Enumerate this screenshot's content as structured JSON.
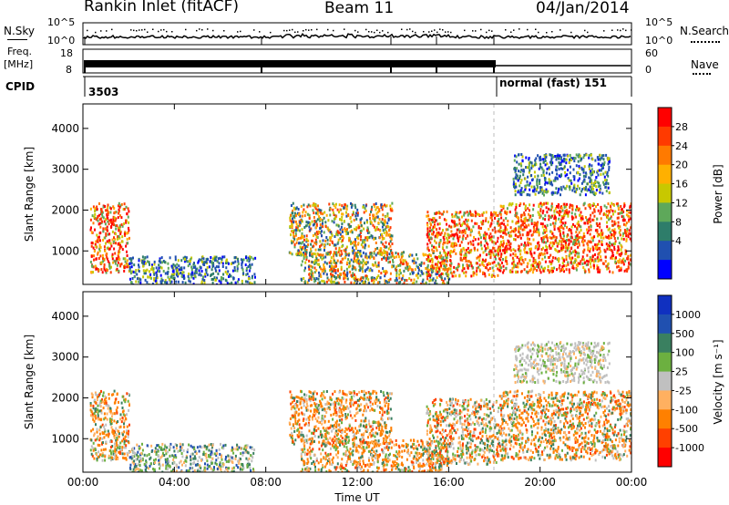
{
  "header": {
    "station": "Rankin Inlet (fitACF)",
    "beam": "Beam 11",
    "date": "04/Jan/2014"
  },
  "aux": {
    "nsky_label": "N.Sky",
    "nsky_ticks": [
      "10^5",
      "10^0"
    ],
    "nsearch_label": "N.Search",
    "freq_label_top": "Freq.",
    "freq_label_bottom": "[MHz]",
    "freq_ticks": [
      "18",
      "8"
    ],
    "nave_label": "Nave",
    "nave_ticks": [
      "60",
      "0"
    ],
    "cpid_label": "CPID",
    "cpid_left": "3503",
    "cpid_right": "normal (fast) 151"
  },
  "chart_data": [
    {
      "type": "heatmap",
      "name": "power-panel",
      "ylabel": "Slant Range [km]",
      "xlabel": "",
      "x_ticks": [
        "00:00",
        "04:00",
        "08:00",
        "12:00",
        "16:00",
        "20:00",
        "00:00"
      ],
      "x_range_hours": [
        0,
        24
      ],
      "y_ticks": [
        1000,
        2000,
        3000,
        4000
      ],
      "y_range_km": [
        180,
        4600
      ],
      "colorbar": {
        "label": "Power [dB]",
        "ticks": [
          "28",
          "24",
          "20",
          "16",
          "12",
          "8",
          "4"
        ],
        "colors": [
          "#ff0000",
          "#ff3a00",
          "#ff7a00",
          "#ffb000",
          "#c8c800",
          "#5ea85a",
          "#2e7d6a",
          "#2050b0",
          "#0000ff"
        ]
      },
      "echo_regions": [
        {
          "t_start": 0.3,
          "t_end": 2.0,
          "r_min": 500,
          "r_max": 2200,
          "level": "high"
        },
        {
          "t_start": 2.0,
          "t_end": 7.5,
          "r_min": 200,
          "r_max": 900,
          "level": "low"
        },
        {
          "t_start": 9.0,
          "t_end": 13.5,
          "r_min": 900,
          "r_max": 2200,
          "level": "mid"
        },
        {
          "t_start": 9.5,
          "t_end": 16.0,
          "r_min": 200,
          "r_max": 1000,
          "level": "mid"
        },
        {
          "t_start": 15.0,
          "t_end": 18.2,
          "r_min": 400,
          "r_max": 2000,
          "level": "high"
        },
        {
          "t_start": 18.2,
          "t_end": 24.0,
          "r_min": 500,
          "r_max": 2200,
          "level": "high"
        },
        {
          "t_start": 18.8,
          "t_end": 23.0,
          "r_min": 2400,
          "r_max": 3400,
          "level": "low"
        }
      ]
    },
    {
      "type": "heatmap",
      "name": "velocity-panel",
      "ylabel": "Slant Range [km]",
      "xlabel": "Time UT",
      "x_ticks": [
        "00:00",
        "04:00",
        "08:00",
        "12:00",
        "16:00",
        "20:00",
        "00:00"
      ],
      "x_range_hours": [
        0,
        24
      ],
      "y_ticks": [
        1000,
        2000,
        3000,
        4000
      ],
      "y_range_km": [
        180,
        4600
      ],
      "colorbar": {
        "label": "Velocity [m s⁻¹]",
        "ticks": [
          "1000",
          "500",
          "100",
          "25",
          "-25",
          "-100",
          "-500",
          "-1000"
        ],
        "colors": [
          "#1030c0",
          "#2050b0",
          "#3a8060",
          "#6cb040",
          "#c0c0c0",
          "#ffb060",
          "#ff8000",
          "#ff4000",
          "#ff0000"
        ]
      },
      "echo_regions": [
        {
          "t_start": 0.3,
          "t_end": 2.0,
          "r_min": 500,
          "r_max": 2200,
          "level": "negative"
        },
        {
          "t_start": 2.0,
          "t_end": 7.5,
          "r_min": 200,
          "r_max": 900,
          "level": "positive"
        },
        {
          "t_start": 9.0,
          "t_end": 13.5,
          "r_min": 900,
          "r_max": 2200,
          "level": "negative"
        },
        {
          "t_start": 9.5,
          "t_end": 16.0,
          "r_min": 200,
          "r_max": 1000,
          "level": "negative"
        },
        {
          "t_start": 15.0,
          "t_end": 18.2,
          "r_min": 400,
          "r_max": 2000,
          "level": "mixed"
        },
        {
          "t_start": 18.2,
          "t_end": 24.0,
          "r_min": 500,
          "r_max": 2200,
          "level": "negative"
        },
        {
          "t_start": 18.8,
          "t_end": 23.0,
          "r_min": 2400,
          "r_max": 3400,
          "level": "near-zero"
        }
      ]
    }
  ]
}
